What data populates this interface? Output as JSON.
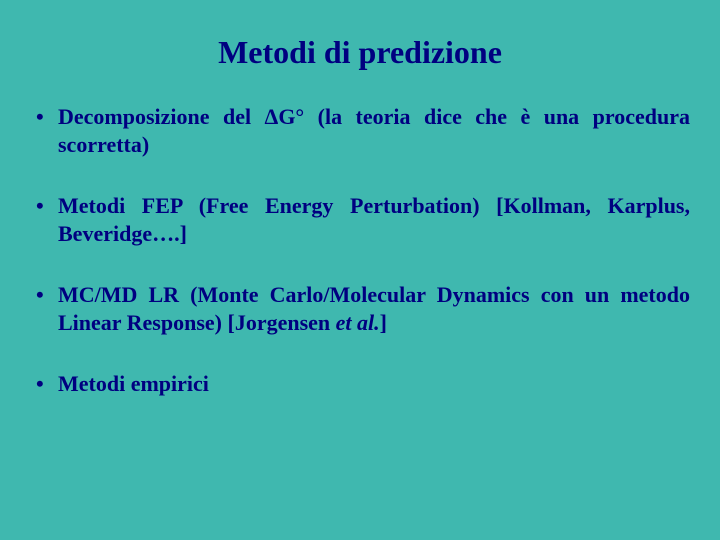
{
  "background_color": "#3fb8af",
  "title_color": "#000080",
  "text_color": "#000080",
  "title_fontsize": 32,
  "body_fontsize": 22,
  "title": "Metodi di predizione",
  "bullets": [
    {
      "text": "Decomposizione del ΔG° (la teoria dice che è una procedura scorretta)"
    },
    {
      "text": "Metodi FEP (Free Energy Perturbation) [Kollman, Karplus, Beveridge….]"
    },
    {
      "text_pre": "MC/MD LR (Monte Carlo/Molecular Dynamics con un metodo Linear Response) [Jorgensen ",
      "text_italic": "et al.",
      "text_post": "]"
    },
    {
      "text": "Metodi empirici"
    }
  ]
}
